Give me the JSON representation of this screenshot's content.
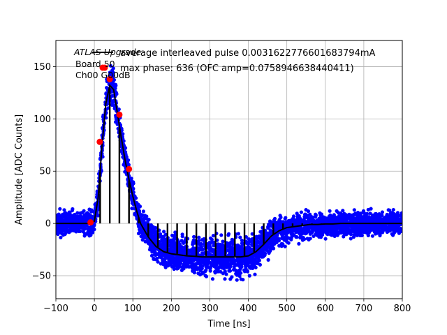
{
  "chart_data": {
    "type": "scatter",
    "xlabel": "Time [ns]",
    "ylabel": "Amplitude [ADC Counts]",
    "xlim": [
      -100,
      800
    ],
    "ylim": [
      -72,
      175
    ],
    "xticks": [
      -100,
      0,
      100,
      200,
      300,
      400,
      500,
      600,
      700,
      800
    ],
    "yticks": [
      -50,
      0,
      50,
      100,
      150
    ],
    "xtick_labels": [
      "−100",
      "0",
      "100",
      "200",
      "300",
      "400",
      "500",
      "600",
      "700",
      "800"
    ],
    "ytick_labels": [
      "−50",
      "0",
      "50",
      "100",
      "150"
    ],
    "grid": true,
    "legend_placement": "top-right",
    "annotation": {
      "lines": [
        "ATLAS Upgrade",
        "Board 50",
        "Ch00 G00dB"
      ]
    },
    "colors": {
      "scatter": "#0000ff",
      "average": "#000000",
      "max_phase": "#ff0000"
    },
    "series": [
      {
        "name": "average interleaved pulse 0.0031622776601683794mA",
        "kind": "line",
        "x": [
          -100,
          -20,
          -10,
          0,
          10,
          20,
          30,
          40,
          50,
          60,
          70,
          80,
          90,
          100,
          110,
          120,
          140,
          160,
          180,
          200,
          220,
          240,
          260,
          280,
          300,
          320,
          340,
          360,
          380,
          400,
          420,
          440,
          460,
          480,
          500,
          520,
          540,
          560,
          580,
          600,
          620,
          640,
          660,
          700,
          750,
          800
        ],
        "y": [
          0,
          0,
          0.5,
          2,
          25,
          75,
          115,
          132,
          128,
          105,
          82,
          60,
          42,
          26,
          12,
          0,
          -13,
          -22,
          -27,
          -29,
          -30,
          -31,
          -31.5,
          -32,
          -32,
          -32,
          -32,
          -32,
          -32,
          -31,
          -27,
          -20,
          -12,
          -7,
          -4,
          -3,
          -2,
          -1,
          -1,
          -0.5,
          -0.5,
          0,
          0,
          0,
          0,
          0
        ]
      },
      {
        "name": "max phase: 636 (OFC amp=0.0758946638440411)",
        "kind": "points",
        "x": [
          -10,
          14,
          27,
          40,
          65,
          90
        ],
        "y": [
          1,
          78,
          149,
          138,
          104,
          52
        ]
      }
    ],
    "scatter_envelope": {
      "x": [
        -100,
        -20,
        0,
        10,
        20,
        30,
        40,
        50,
        60,
        80,
        100,
        120,
        150,
        200,
        250,
        300,
        350,
        400,
        440,
        480,
        520,
        600,
        700,
        800
      ],
      "center": [
        0,
        0,
        2,
        25,
        75,
        115,
        132,
        128,
        105,
        60,
        26,
        0,
        -17,
        -29,
        -31,
        -32,
        -32,
        -32,
        -20,
        -7,
        -3,
        -1,
        0,
        0
      ],
      "spread": [
        16,
        16,
        18,
        22,
        25,
        28,
        28,
        27,
        25,
        22,
        20,
        20,
        22,
        24,
        25,
        26,
        26,
        25,
        22,
        20,
        18,
        17,
        16,
        16
      ]
    },
    "phase_lines": {
      "x_start": 15,
      "step": 25,
      "count": 24,
      "height_fraction": 0.98
    }
  }
}
